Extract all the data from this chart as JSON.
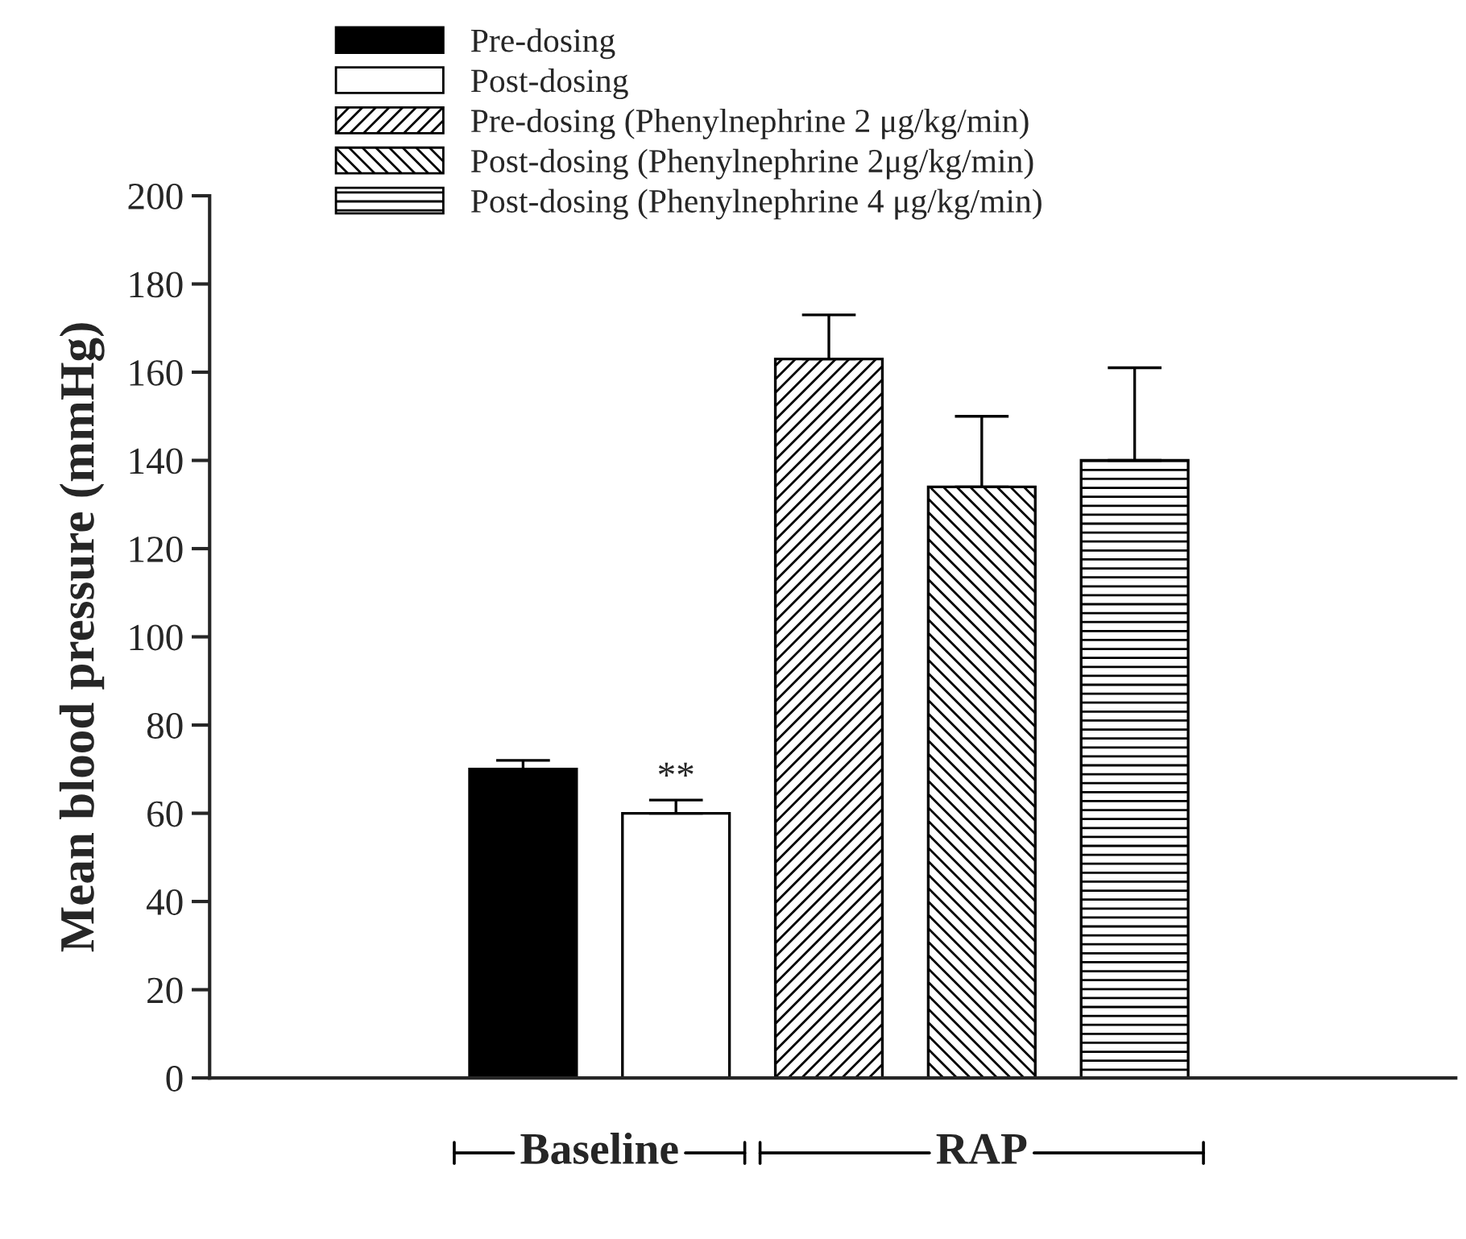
{
  "chart_data": {
    "type": "bar",
    "ylabel": "Mean blood pressure (mmHg)",
    "categories": [
      null
    ],
    "series": [
      {
        "name": "Pre-dosing",
        "color": "#000000",
        "values": [
          70
        ],
        "errors": [
          [
            70,
            72
          ]
        ]
      },
      {
        "name": "Post-dosing",
        "color": "#ffffff",
        "values": [
          60
        ],
        "errors": [
          [
            60,
            63
          ]
        ]
      },
      {
        "name": "Pre-dosing (Phenylnephrine 2 μg/kg/min)",
        "color": "#000000",
        "values": [
          163
        ],
        "errors": [
          [
            163,
            173
          ]
        ]
      },
      {
        "name": "Post-dosing (Phenylnephrine 2μg/kg/min)",
        "color": "#000000",
        "values": [
          134
        ],
        "errors": [
          [
            134,
            150
          ]
        ]
      },
      {
        "name": "Post-dosing (Phenylnephrine 4 μg/kg/min)",
        "color": "#000000",
        "values": [
          140
        ],
        "errors": [
          [
            140,
            161
          ]
        ]
      }
    ],
    "annotations": [
      "**",
      "Baseline",
      "RAP"
    ],
    "ylim": [
      0,
      200
    ],
    "yticks": [
      0,
      20,
      40,
      60,
      80,
      100,
      120,
      140,
      160,
      180,
      200
    ],
    "legend": "top left",
    "tick_labels": "y"
  }
}
